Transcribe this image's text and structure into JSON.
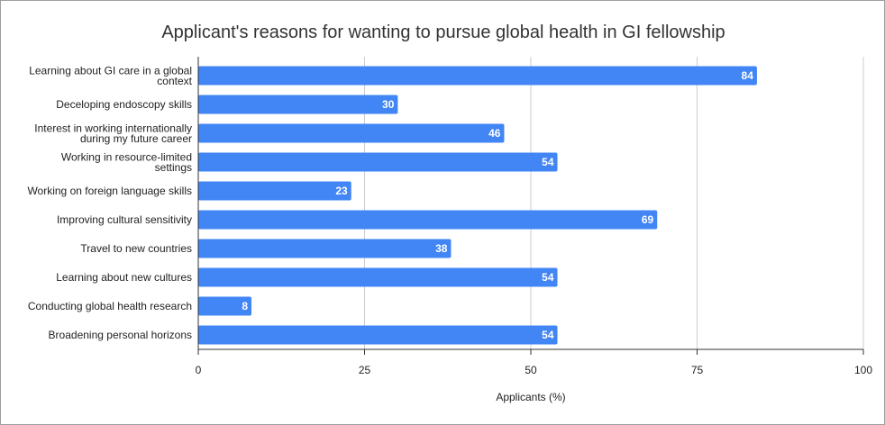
{
  "chart_data": {
    "type": "bar",
    "orientation": "horizontal",
    "title": "Applicant's reasons for wanting to pursue global health in GI fellowship",
    "xlabel": "Applicants (%)",
    "ylabel": "",
    "xlim": [
      0,
      100
    ],
    "x_ticks": [
      0,
      25,
      50,
      75,
      100
    ],
    "grid": true,
    "bar_color": "#4285f4",
    "categories": [
      [
        "Learning about GI care in a global",
        "context"
      ],
      [
        "Deceloping endoscopy skills"
      ],
      [
        "Interest in working internationally",
        "during my future career"
      ],
      [
        "Working in resource-limited",
        "settings"
      ],
      [
        "Working on foreign language skills"
      ],
      [
        "Improving cultural sensitivity"
      ],
      [
        "Travel to new countries"
      ],
      [
        "Learning about new cultures"
      ],
      [
        "Conducting global health research"
      ],
      [
        "Broadening personal horizons"
      ]
    ],
    "values": [
      84,
      30,
      46,
      54,
      23,
      69,
      38,
      54,
      8,
      54
    ]
  }
}
